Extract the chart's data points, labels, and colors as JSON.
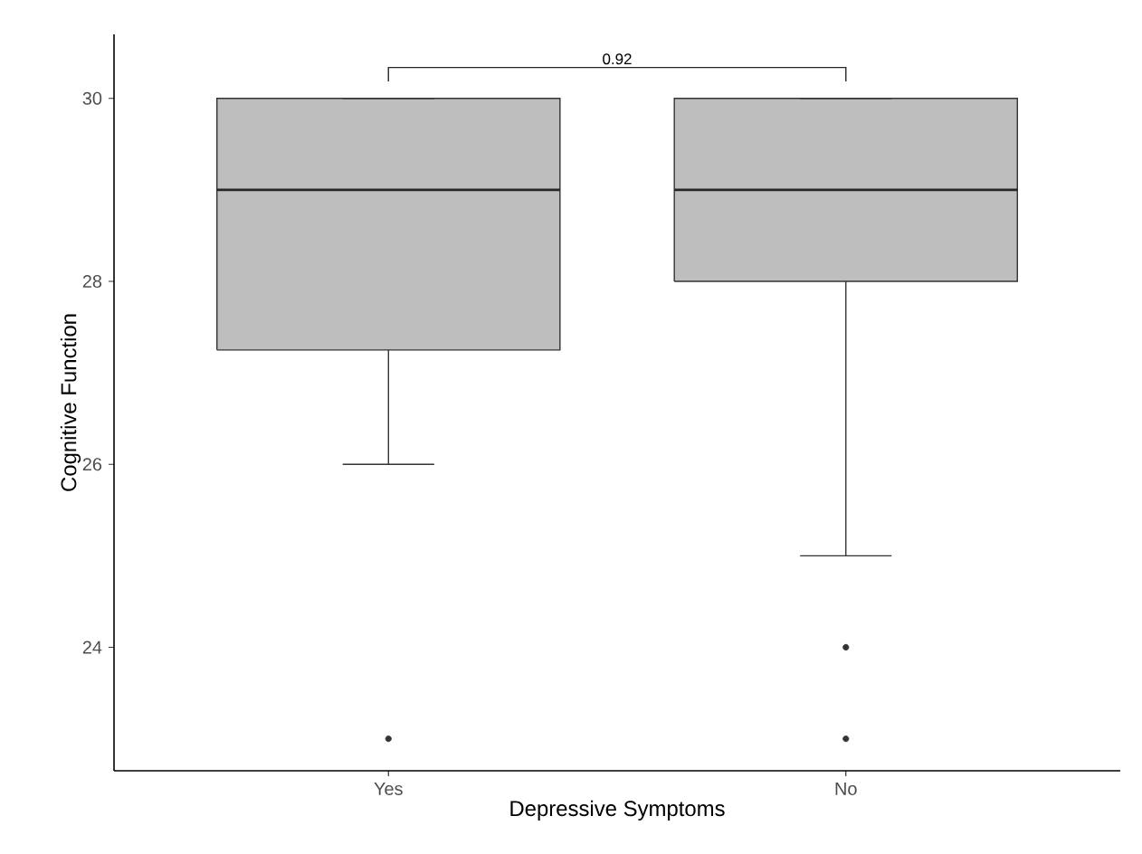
{
  "chart_data": {
    "type": "box",
    "xlabel": "Depressive Symptoms",
    "ylabel": "Cognitive Function",
    "categories": [
      "Yes",
      "No"
    ],
    "series": [
      {
        "color": "#bebebe",
        "boxes": [
          {
            "low": 26,
            "q1": 27.25,
            "median": 29,
            "q3": 30,
            "high": 30,
            "outliers": [
              23
            ]
          },
          {
            "low": 25,
            "q1": 28,
            "median": 29,
            "q3": 30,
            "high": 30,
            "outliers": [
              24,
              23
            ]
          }
        ]
      }
    ],
    "ylim": [
      22.65,
      30.7
    ],
    "yticks": [
      24,
      26,
      28,
      30
    ],
    "annotations": [
      "0.92"
    ]
  }
}
